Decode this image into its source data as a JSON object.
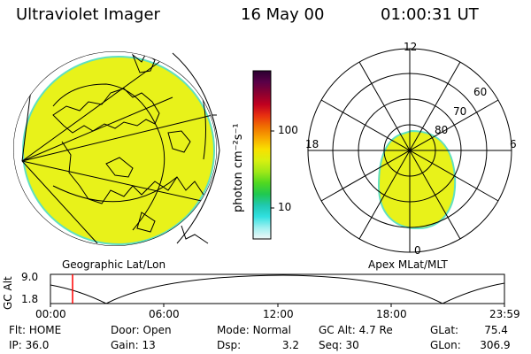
{
  "header": {
    "instrument": "Ultraviolet Imager",
    "date": "16 May 00",
    "time": "01:00:31 UT"
  },
  "colors": {
    "fill": "#e8f21a",
    "rim": "#5fe0c0",
    "line": "#000000",
    "cursor": "#ff0000"
  },
  "left_map": {
    "label": "Geographic Lat/Lon"
  },
  "colorbar": {
    "unit": "photon cm⁻²s⁻¹",
    "ticks": [
      "100",
      "10"
    ],
    "stops": [
      "#2a0030",
      "#5a0048",
      "#8a0030",
      "#c00020",
      "#e83010",
      "#f07000",
      "#f8a800",
      "#f8e000",
      "#d8f010",
      "#a0e818",
      "#50d820",
      "#20c850",
      "#20c8b0",
      "#30e0e0",
      "#a0f0f0",
      "#f0f8f8"
    ]
  },
  "polar_plot": {
    "label": "Apex MLat/MLT",
    "mlt_labels": {
      "top": "12",
      "left": "18",
      "right": "6",
      "bottom": "0"
    },
    "lat_labels": [
      "60",
      "70",
      "80"
    ]
  },
  "timeline": {
    "axis_label": "GC Alt",
    "y_ticks": [
      "9.0",
      "1.8"
    ],
    "x_ticks": [
      "00:00",
      "06:00",
      "12:00",
      "18:00",
      "23:59"
    ],
    "cursor_time": "01:00"
  },
  "status": {
    "filter": {
      "label": "Flt:",
      "value": "HOME"
    },
    "door": {
      "label": "Door:",
      "value": "Open"
    },
    "mode": {
      "label": "Mode:",
      "value": "Normal"
    },
    "gc_alt": {
      "label": "GC Alt:",
      "value": "4.7 Re"
    },
    "glat": {
      "label": "GLat:",
      "value": "75.4"
    },
    "ip": {
      "label": "IP:",
      "value": "36.0"
    },
    "gain": {
      "label": "Gain:",
      "value": "13"
    },
    "dsp": {
      "label": "Dsp:",
      "value": "3.2"
    },
    "seq": {
      "label": "Seq:",
      "value": "30"
    },
    "glon": {
      "label": "GLon:",
      "value": "306.9"
    }
  }
}
